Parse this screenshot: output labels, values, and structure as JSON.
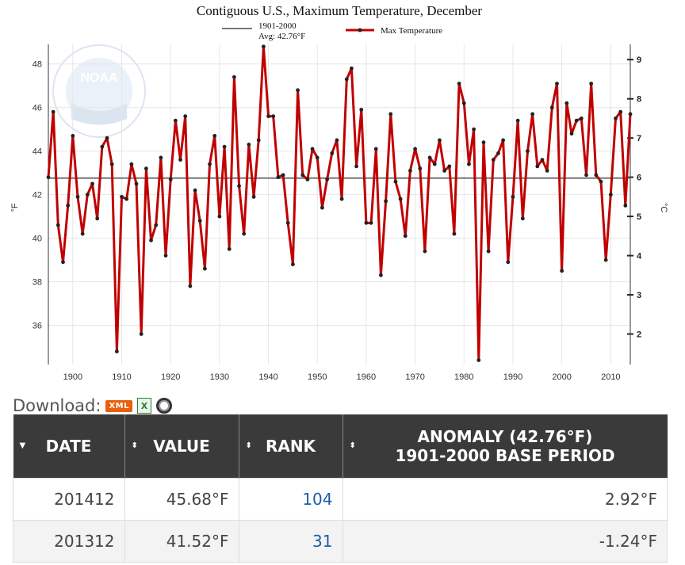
{
  "chart_data": {
    "type": "line",
    "title": "Contiguous U.S., Maximum Temperature, December",
    "ylabel_left": "°F",
    "ylabel_right": "°C",
    "legend": {
      "baseline_label_line1": "1901-2000",
      "baseline_label_line2": "Avg: 42.76°F",
      "series_label": "Max Temperature",
      "placement": "top-center"
    },
    "baseline": 42.76,
    "xlim": [
      1895,
      2014
    ],
    "ylim": [
      34.2,
      48.9
    ],
    "x_ticks": [
      1900,
      1910,
      1920,
      1930,
      1940,
      1950,
      1960,
      1970,
      1980,
      1990,
      2000,
      2010
    ],
    "y_ticks_left": [
      36,
      38,
      40,
      42,
      44,
      46,
      48
    ],
    "y_ticks_right": [
      2,
      3,
      4,
      5,
      6,
      7,
      8,
      9
    ],
    "series": [
      {
        "name": "Max Temperature",
        "color": "#c00000",
        "x_start": 1895,
        "values": [
          42.8,
          45.8,
          40.6,
          38.9,
          41.5,
          44.7,
          41.9,
          40.2,
          42.0,
          42.5,
          40.9,
          44.2,
          44.6,
          43.4,
          34.8,
          41.9,
          41.8,
          43.4,
          42.5,
          35.6,
          43.2,
          39.9,
          40.6,
          43.7,
          39.2,
          42.7,
          45.4,
          43.6,
          45.6,
          37.8,
          42.2,
          40.8,
          38.6,
          43.4,
          44.7,
          41.0,
          44.2,
          39.5,
          47.4,
          42.4,
          40.2,
          44.3,
          41.9,
          44.5,
          48.8,
          45.6,
          45.6,
          42.8,
          42.9,
          40.7,
          38.8,
          46.8,
          42.9,
          42.7,
          44.1,
          43.7,
          41.4,
          42.7,
          43.9,
          44.5,
          41.8,
          47.3,
          47.8,
          43.3,
          45.9,
          40.7,
          40.7,
          44.1,
          38.3,
          41.7,
          45.7,
          42.6,
          41.8,
          40.1,
          43.1,
          44.1,
          43.2,
          39.4,
          43.7,
          43.4,
          44.5,
          43.1,
          43.3,
          40.2,
          47.1,
          46.2,
          43.4,
          45.0,
          34.4,
          44.4,
          39.4,
          43.6,
          43.9,
          44.5,
          38.9,
          41.9,
          45.4,
          40.9,
          44.0,
          45.7,
          43.3,
          43.6,
          43.1,
          46.0,
          47.1,
          38.5,
          46.2,
          44.8,
          45.4,
          45.5,
          42.9,
          47.1,
          42.9,
          42.6,
          39.0,
          42.0,
          45.5,
          45.8,
          41.5,
          45.7
        ]
      }
    ]
  },
  "download": {
    "label": "Download:",
    "xml_label": "XML",
    "xls_label": "X"
  },
  "table": {
    "headers": [
      "DATE",
      "VALUE",
      "RANK"
    ],
    "anomaly_header_line1": "ANOMALY (42.76°F)",
    "anomaly_header_line2": "1901-2000 BASE PERIOD",
    "sort_desc_glyph": "▼",
    "sort_both_glyph": "⬍",
    "rows": [
      {
        "date": "201412",
        "value": "45.68°F",
        "rank": "104",
        "anomaly": "2.92°F"
      },
      {
        "date": "201312",
        "value": "41.52°F",
        "rank": "31",
        "anomaly": "-1.24°F"
      }
    ]
  },
  "colors": {
    "accent": "#c00000",
    "header_bg": "#3a3a3a",
    "rank_link": "#1a5ea8",
    "xml_badge": "#e8600c"
  }
}
